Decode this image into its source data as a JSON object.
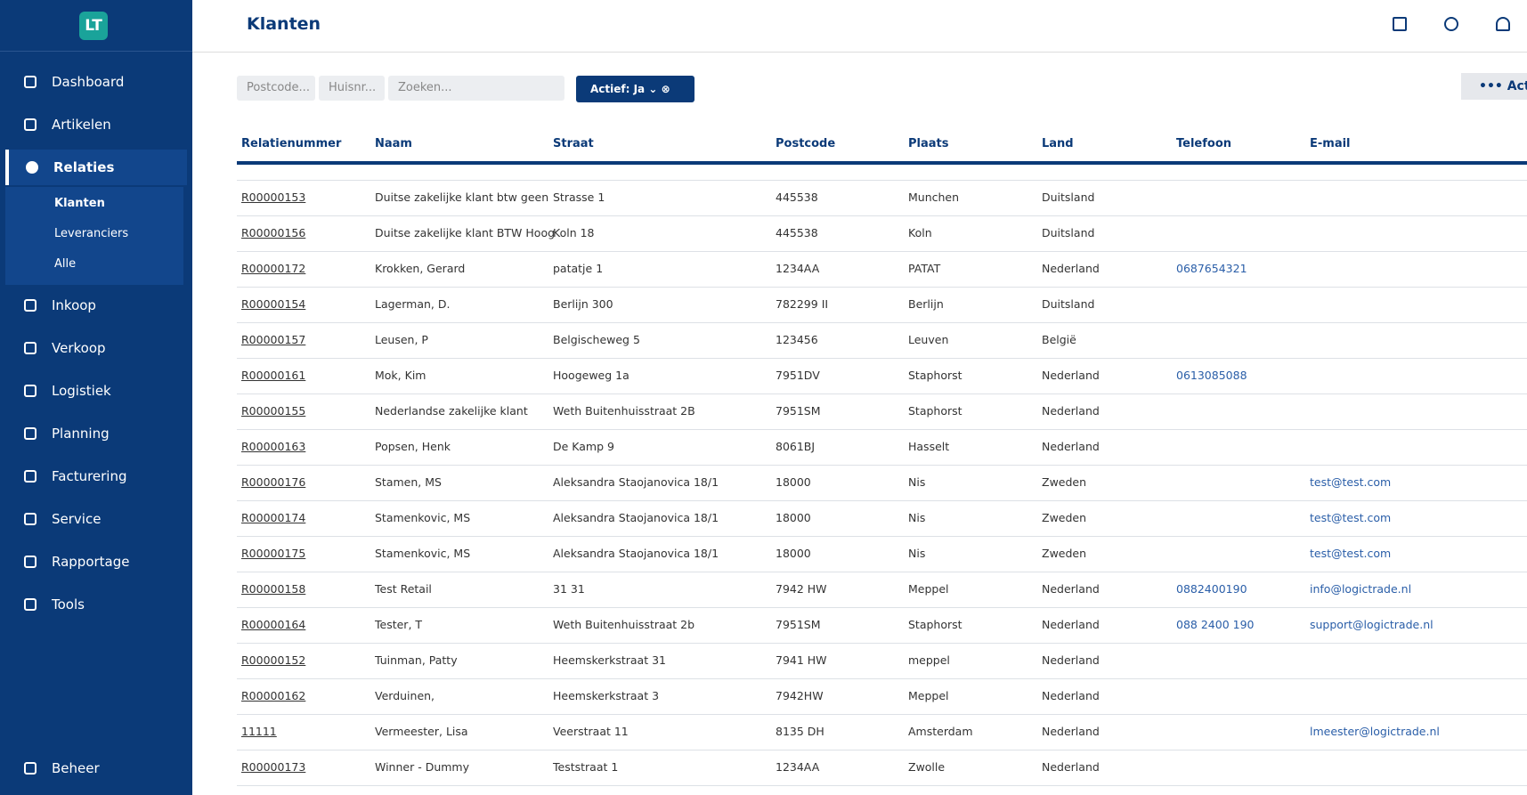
{
  "header": {
    "title": "Klanten",
    "acties": "Acti"
  },
  "nav": [
    "Dashboard",
    "Artikelen",
    "Relaties",
    "Inkoop",
    "Verkoop",
    "Logistiek",
    "Planning",
    "Facturering",
    "Service",
    "Rapportage",
    "Tools"
  ],
  "submenu": [
    "Klanten",
    "Leveranciers",
    "Alle"
  ],
  "footer_nav": "Beheer",
  "toolbar": {
    "postcode": "Postcode...",
    "huisnr": "Huisnr...",
    "zoeken": "Zoeken...",
    "filter": "Actief: Ja"
  },
  "table": {
    "columns": [
      "Relatienummer",
      "Naam",
      "Straat",
      "Postcode",
      "Plaats",
      "Land",
      "Telefoon",
      "E-mail"
    ],
    "rows": [
      [
        "R00000153",
        "Duitse zakelijke klant btw geen",
        "Strasse  1",
        "445538",
        "Munchen",
        "Duitsland",
        null,
        null
      ],
      [
        "R00000156",
        "Duitse zakelijke klant BTW Hoog",
        "Koln 18",
        "445538",
        "Koln",
        "Duitsland",
        null,
        null
      ],
      [
        "R00000172",
        "Krokken, Gerard",
        "patatje 1",
        "1234AA",
        "PATAT",
        "Nederland",
        "0687654321",
        null
      ],
      [
        "R00000154",
        "Lagerman, D.",
        "Berlijn 300",
        "782299 II",
        "Berlijn",
        "Duitsland",
        null,
        null
      ],
      [
        "R00000157",
        "Leusen, P",
        "Belgischeweg  5",
        "123456",
        "Leuven",
        "België",
        null,
        null
      ],
      [
        "R00000161",
        "Mok, Kim",
        "Hoogeweg 1a",
        "7951DV",
        "Staphorst",
        "Nederland",
        "0613085088",
        null
      ],
      [
        "R00000155",
        "Nederlandse zakelijke klant",
        "Weth Buitenhuisstraat 2B",
        "7951SM",
        "Staphorst",
        "Nederland",
        null,
        null
      ],
      [
        "R00000163",
        "Popsen, Henk",
        "De Kamp 9",
        "8061BJ",
        "Hasselt",
        "Nederland",
        null,
        null
      ],
      [
        "R00000176",
        "Stamen, MS",
        "Aleksandra Staojanovica 18/1",
        "18000",
        "Nis",
        "Zweden",
        null,
        "test@test.com"
      ],
      [
        "R00000174",
        "Stamenkovic, MS",
        "Aleksandra Staojanovica 18/1",
        "18000",
        "Nis",
        "Zweden",
        null,
        "test@test.com"
      ],
      [
        "R00000175",
        "Stamenkovic, MS",
        "Aleksandra Staojanovica 18/1",
        "18000",
        "Nis",
        "Zweden",
        null,
        "test@test.com"
      ],
      [
        "R00000158",
        "Test Retail",
        "31 31",
        "7942 HW",
        "Meppel",
        "Nederland",
        "0882400190",
        "info@logictrade.nl"
      ],
      [
        "R00000164",
        "Tester, T",
        "Weth Buitenhuisstraat 2b",
        "7951SM",
        "Staphorst",
        "Nederland",
        "088 2400 190",
        "support@logictrade.nl"
      ],
      [
        "R00000152",
        "Tuinman, Patty",
        "Heemskerkstraat 31",
        "7941 HW",
        "meppel",
        "Nederland",
        null,
        null
      ],
      [
        "R00000162",
        "Verduinen,",
        "Heemskerkstraat 3",
        "7942HW",
        "Meppel",
        "Nederland",
        null,
        null
      ],
      [
        "11111",
        "Vermeester, Lisa",
        "Veerstraat 11",
        "8135 DH",
        "Amsterdam",
        "Nederland",
        null,
        "lmeester@logictrade.nl"
      ],
      [
        "R00000173",
        "Winner - Dummy",
        "Teststraat 1",
        "1234AA",
        "Zwolle",
        "Nederland",
        null,
        null
      ]
    ]
  }
}
